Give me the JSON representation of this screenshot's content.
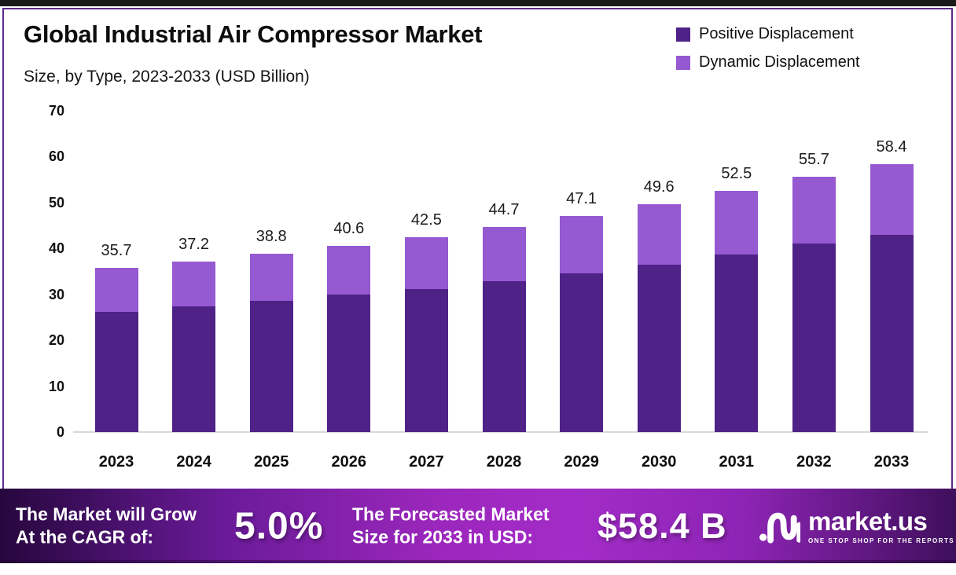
{
  "header": {
    "title": "Global Industrial Air Compressor Market",
    "subtitle": "Size, by Type, 2023-2033 (USD Billion)"
  },
  "colors": {
    "frame_border": "#5c2b8a",
    "top_strip": "#1a1a1a",
    "positive_displacement": "#4f2287",
    "dynamic_displacement": "#9559d2",
    "axis_line": "#d8d8d8",
    "banner_gradient": [
      "#26073d",
      "#6b1b9a",
      "#9c27bc",
      "#a32cc8",
      "#8d24b4",
      "#3f0f5c"
    ]
  },
  "legend": {
    "items": [
      {
        "label": "Positive Displacement",
        "color": "#4f2287"
      },
      {
        "label": "Dynamic Displacement",
        "color": "#9559d2"
      }
    ]
  },
  "chart_data": {
    "type": "bar",
    "stacked": true,
    "title": "Global Industrial Air Compressor Market",
    "subtitle": "Size, by Type, 2023-2033 (USD Billion)",
    "xlabel": "",
    "ylabel": "",
    "categories": [
      "2023",
      "2024",
      "2025",
      "2026",
      "2027",
      "2028",
      "2029",
      "2030",
      "2031",
      "2032",
      "2033"
    ],
    "totals": [
      35.7,
      37.2,
      38.8,
      40.6,
      42.5,
      44.7,
      47.1,
      49.6,
      52.5,
      55.7,
      58.4
    ],
    "bar_labels": [
      "35.7",
      "37.2",
      "38.8",
      "40.6",
      "42.5",
      "44.7",
      "47.1",
      "49.6",
      "52.5",
      "55.7",
      "58.4"
    ],
    "series": [
      {
        "name": "Positive Displacement",
        "color": "#4f2287",
        "values_estimated_from_pixels": true,
        "values": [
          26.2,
          27.4,
          28.5,
          29.9,
          31.2,
          32.9,
          34.6,
          36.5,
          38.6,
          41.0,
          43.0
        ]
      },
      {
        "name": "Dynamic Displacement",
        "color": "#9559d2",
        "values_estimated_from_pixels": true,
        "values": [
          9.5,
          9.8,
          10.3,
          10.7,
          11.3,
          11.8,
          12.5,
          13.1,
          13.9,
          14.7,
          15.4
        ]
      }
    ],
    "y_ticks": [
      0,
      10,
      20,
      30,
      40,
      50,
      60,
      70
    ],
    "ylim": [
      0,
      70
    ],
    "grid": false,
    "legend_position": "top-right"
  },
  "banner": {
    "cagr_line1": "The Market will Grow",
    "cagr_line2": "At the CAGR of:",
    "cagr_value": "5.0%",
    "forecast_line1": "The Forecasted Market",
    "forecast_line2": "Size for 2033 in USD:",
    "forecast_value": "$58.4 B",
    "logo_name": "market.us",
    "logo_tagline": "ONE STOP SHOP FOR THE REPORTS"
  }
}
